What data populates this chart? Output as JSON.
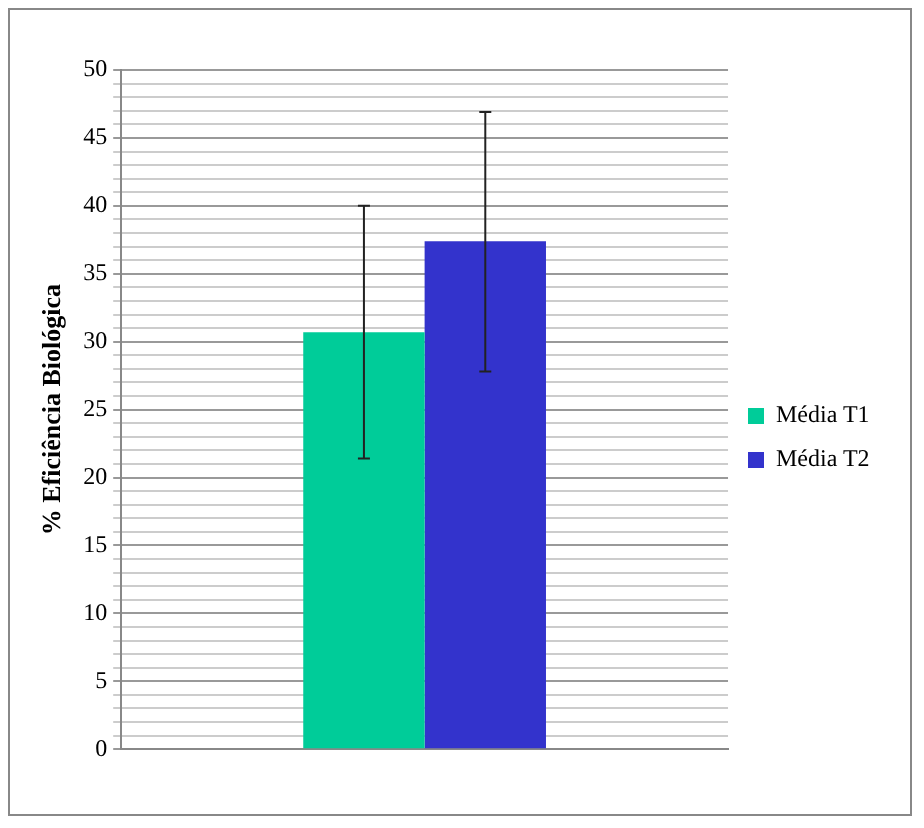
{
  "chart_data": {
    "type": "bar",
    "ylabel": "% Eficiência Biológica",
    "categories": [
      null
    ],
    "series": [
      {
        "name": "Média T1",
        "color": "#00cc99",
        "values": [
          30.7
        ],
        "errors": [
          [
            21.4,
            40.0
          ]
        ]
      },
      {
        "name": "Média T2",
        "color": "#3333cc",
        "values": [
          37.4
        ],
        "errors": [
          [
            27.8,
            46.9
          ]
        ]
      }
    ],
    "ylim": [
      0,
      50
    ],
    "yticks": [
      0,
      {
        "value": 1,
        "label": null
      },
      {
        "value": 2,
        "label": null
      },
      {
        "value": 3,
        "label": null
      },
      {
        "value": 4,
        "label": null
      },
      5,
      {
        "value": 6,
        "label": null
      },
      {
        "value": 7,
        "label": null
      },
      {
        "value": 8,
        "label": null
      },
      {
        "value": 9,
        "label": null
      },
      10,
      {
        "value": 11,
        "label": null
      },
      {
        "value": 12,
        "label": null
      },
      {
        "value": 13,
        "label": null
      },
      {
        "value": 14,
        "label": null
      },
      15,
      {
        "value": 16,
        "label": null
      },
      {
        "value": 17,
        "label": null
      },
      {
        "value": 18,
        "label": null
      },
      {
        "value": 19,
        "label": null
      },
      20,
      {
        "value": 21,
        "label": null
      },
      {
        "value": 22,
        "label": null
      },
      {
        "value": 23,
        "label": null
      },
      {
        "value": 24,
        "label": null
      },
      25,
      {
        "value": 26,
        "label": null
      },
      {
        "value": 27,
        "label": null
      },
      {
        "value": 28,
        "label": null
      },
      {
        "value": 29,
        "label": null
      },
      30,
      {
        "value": 31,
        "label": null
      },
      {
        "value": 32,
        "label": null
      },
      {
        "value": 33,
        "label": null
      },
      {
        "value": 34,
        "label": null
      },
      35,
      {
        "value": 36,
        "label": null
      },
      {
        "value": 37,
        "label": null
      },
      {
        "value": 38,
        "label": null
      },
      {
        "value": 39,
        "label": null
      },
      40,
      {
        "value": 41,
        "label": null
      },
      {
        "value": 42,
        "label": null
      },
      {
        "value": 43,
        "label": null
      },
      {
        "value": 44,
        "label": null
      },
      45,
      {
        "value": 46,
        "label": null
      },
      {
        "value": 47,
        "label": null
      },
      {
        "value": 48,
        "label": null
      },
      {
        "value": 49,
        "label": null
      },
      50
    ],
    "grid": "y",
    "legend": "right"
  }
}
